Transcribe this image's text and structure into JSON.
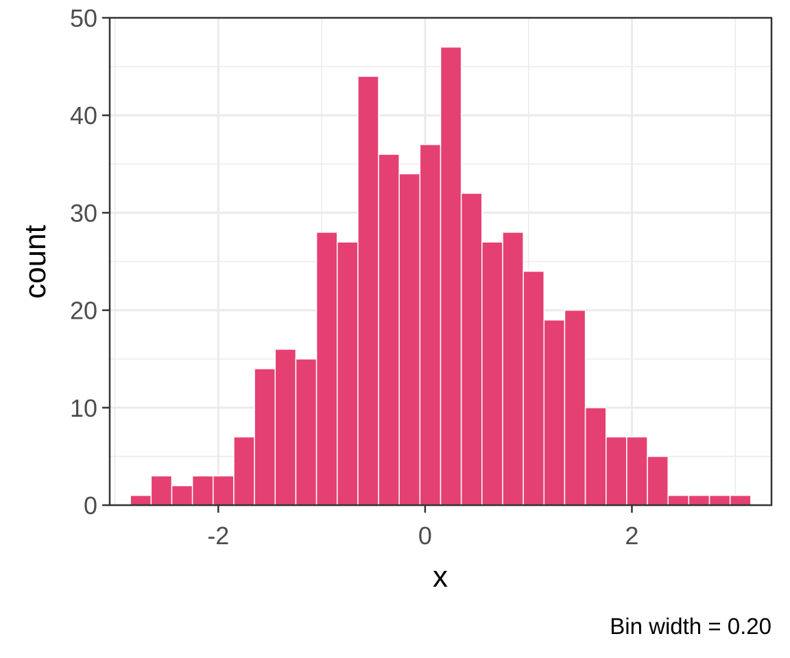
{
  "chart_data": {
    "type": "bar",
    "subtype": "histogram",
    "xlabel": "x",
    "ylabel": "count",
    "caption": "Bin width = 0.20",
    "bin_width": 0.2,
    "bins": [
      {
        "x": -2.75,
        "count": 1
      },
      {
        "x": -2.55,
        "count": 3
      },
      {
        "x": -2.35,
        "count": 2
      },
      {
        "x": -2.15,
        "count": 3
      },
      {
        "x": -1.95,
        "count": 3
      },
      {
        "x": -1.75,
        "count": 7
      },
      {
        "x": -1.55,
        "count": 14
      },
      {
        "x": -1.35,
        "count": 16
      },
      {
        "x": -1.15,
        "count": 15
      },
      {
        "x": -0.95,
        "count": 28
      },
      {
        "x": -0.75,
        "count": 27
      },
      {
        "x": -0.55,
        "count": 44
      },
      {
        "x": -0.35,
        "count": 36
      },
      {
        "x": -0.15,
        "count": 34
      },
      {
        "x": 0.05,
        "count": 37
      },
      {
        "x": 0.25,
        "count": 47
      },
      {
        "x": 0.45,
        "count": 32
      },
      {
        "x": 0.65,
        "count": 27
      },
      {
        "x": 0.85,
        "count": 28
      },
      {
        "x": 1.05,
        "count": 24
      },
      {
        "x": 1.25,
        "count": 19
      },
      {
        "x": 1.45,
        "count": 20
      },
      {
        "x": 1.65,
        "count": 10
      },
      {
        "x": 1.85,
        "count": 7
      },
      {
        "x": 2.05,
        "count": 7
      },
      {
        "x": 2.25,
        "count": 5
      },
      {
        "x": 2.45,
        "count": 1
      },
      {
        "x": 2.65,
        "count": 1
      },
      {
        "x": 2.85,
        "count": 1
      },
      {
        "x": 3.05,
        "count": 1
      }
    ],
    "x_ticks": [
      -2,
      0,
      2
    ],
    "x_tick_labels": [
      "-2",
      "0",
      "2"
    ],
    "y_ticks": [
      0,
      10,
      20,
      30,
      40,
      50
    ],
    "y_tick_labels": [
      "0",
      "10",
      "20",
      "30",
      "40",
      "50"
    ],
    "xlim": [
      -3.05,
      3.35
    ],
    "ylim": [
      0,
      50
    ],
    "grid": true,
    "bar_color": "#e54072",
    "bar_edge_color": "#ffffff",
    "grid_color": "#ebebeb",
    "panel_border_color": "#333333"
  }
}
